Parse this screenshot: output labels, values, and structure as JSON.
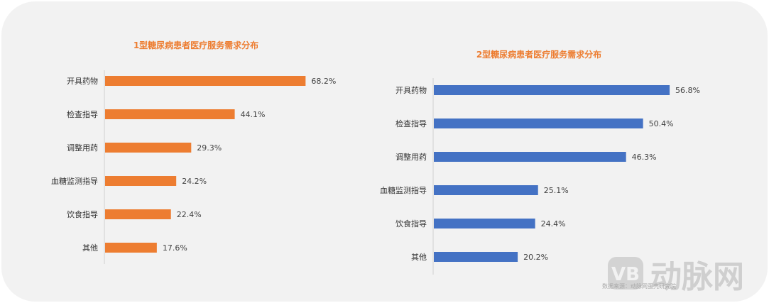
{
  "chart_data": [
    {
      "type": "bar",
      "orientation": "horizontal",
      "title": "1型糖尿病患者医疗服务需求分布",
      "categories": [
        "开具药物",
        "检查指导",
        "调整用药",
        "血糖监测指导",
        "饮食指导",
        "其他"
      ],
      "values": [
        68.2,
        44.1,
        29.3,
        24.2,
        22.4,
        17.6
      ],
      "value_labels": [
        "68.2%",
        "44.1%",
        "29.3%",
        "24.2%",
        "22.4%",
        "17.6%"
      ],
      "xlim": [
        0,
        100
      ],
      "grid": false,
      "legend": "none",
      "color": "#ed7d31",
      "title_color": "#ed7d31"
    },
    {
      "type": "bar",
      "orientation": "horizontal",
      "title": "2型糖尿病患者医疗服务需求分布",
      "categories": [
        "开具药物",
        "检查指导",
        "调整用药",
        "血糖监测指导",
        "饮食指导",
        "其他"
      ],
      "values": [
        56.8,
        50.4,
        46.3,
        25.1,
        24.4,
        20.2
      ],
      "value_labels": [
        "56.8%",
        "50.4%",
        "46.3%",
        "25.1%",
        "24.4%",
        "20.2%"
      ],
      "xlim": [
        0,
        65
      ],
      "grid": false,
      "legend": "none",
      "color": "#4472c4",
      "title_color": "#ed7d31"
    }
  ],
  "watermark": {
    "logo_text": "VB",
    "brand_text": "动脉网",
    "color": "#cfcfcf"
  },
  "source_note": "数据来源：动脉网蛋壳研究院"
}
